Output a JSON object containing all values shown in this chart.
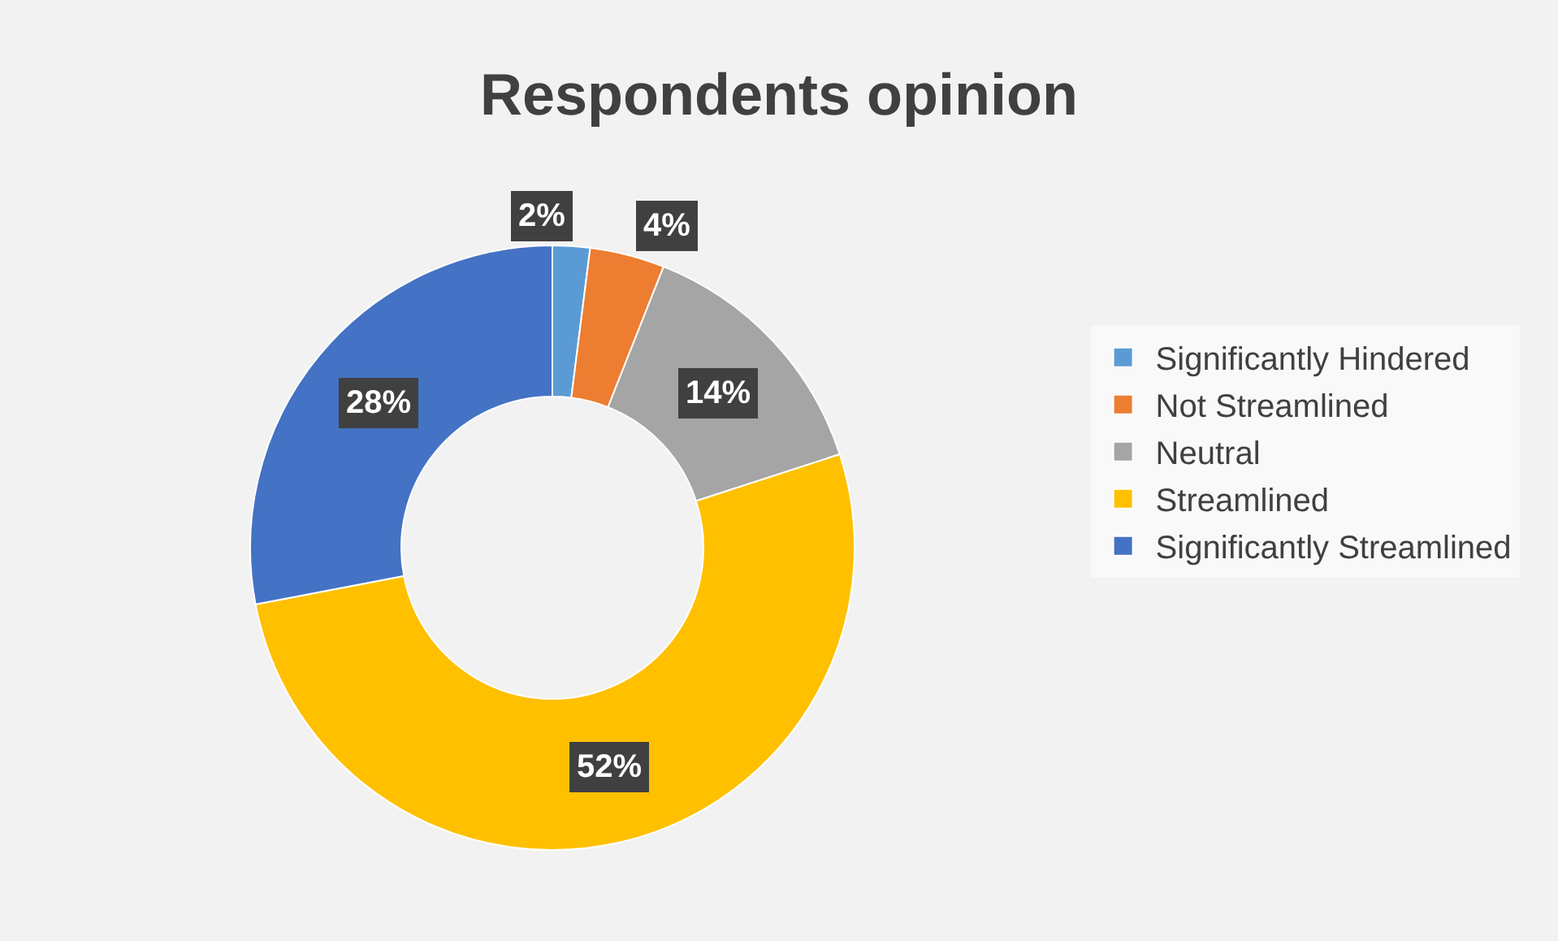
{
  "chart_data": {
    "type": "donut",
    "title": "Respondents opinion",
    "categories": [
      "Significantly Hindered",
      "Not Streamlined",
      "Neutral",
      "Streamlined",
      "Significantly Streamlined"
    ],
    "values": [
      2,
      4,
      14,
      52,
      28
    ],
    "value_labels": [
      "2%",
      "4%",
      "14%",
      "52%",
      "28%"
    ],
    "colors": [
      "#5b9bd5",
      "#ed7d31",
      "#a5a5a5",
      "#ffc000",
      "#4472c4"
    ],
    "legend": "right"
  }
}
